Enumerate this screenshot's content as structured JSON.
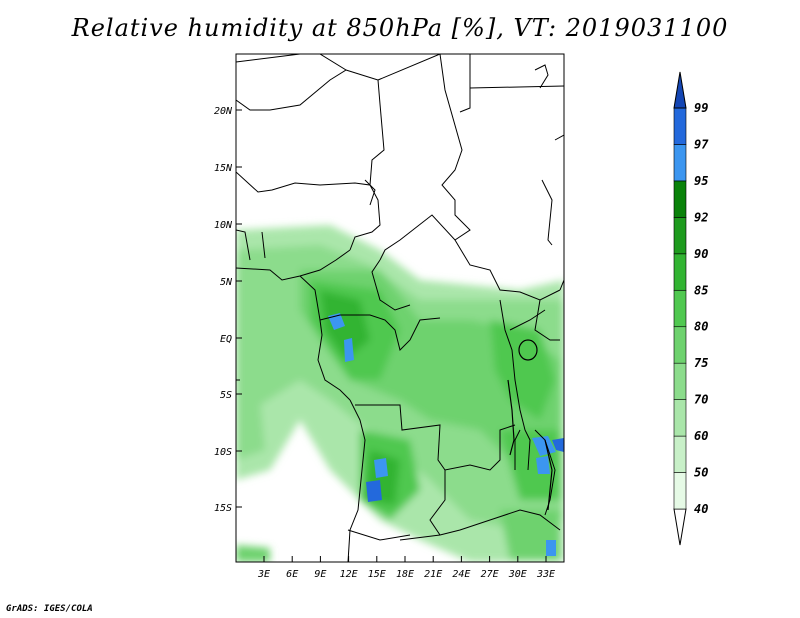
{
  "title": "Relative humidity at 850hPa [%], VT: 2019031100",
  "credit": "GrADS: IGES/COLA",
  "map": {
    "lat_ticks": [
      "20N",
      "15N",
      "10N",
      "5N",
      "EQ",
      "5S",
      "10S",
      "15S"
    ],
    "lon_ticks": [
      "3E",
      "6E",
      "9E",
      "12E",
      "15E",
      "18E",
      "21E",
      "24E",
      "27E",
      "30E",
      "33E"
    ]
  },
  "colorbar": {
    "levels": [
      "40",
      "50",
      "60",
      "70",
      "75",
      "80",
      "85",
      "90",
      "92",
      "95",
      "97",
      "99"
    ],
    "colors": [
      "#ffffff",
      "#e6fae6",
      "#c8f0c8",
      "#aae6aa",
      "#8cdc8c",
      "#6ed26e",
      "#50c850",
      "#32b432",
      "#1e9b1e",
      "#0a820a",
      "#3c96f0",
      "#2369dc",
      "#1446b4"
    ]
  }
}
